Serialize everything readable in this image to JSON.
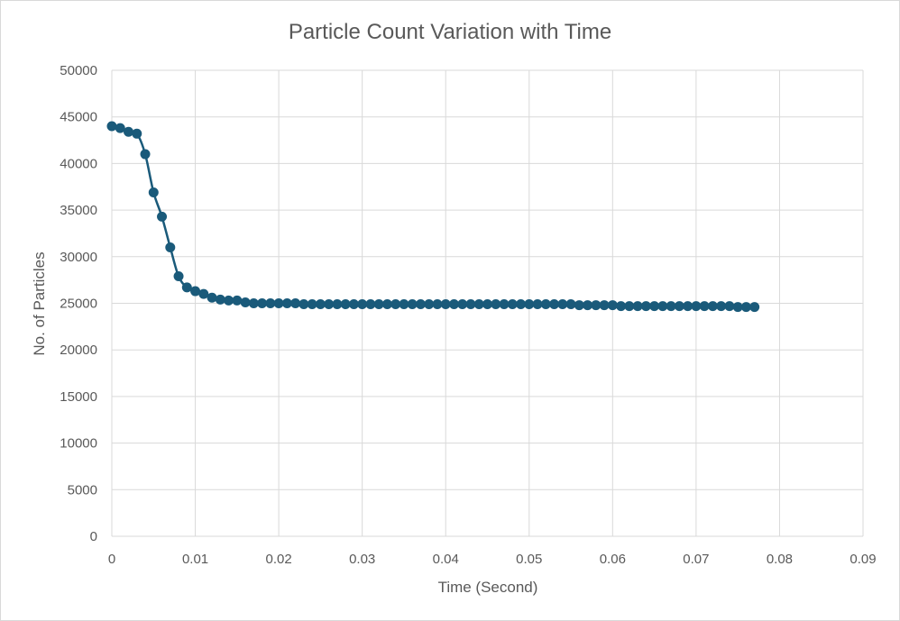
{
  "chart_data": {
    "type": "scatter",
    "title": "Particle Count Variation with Time",
    "xlabel": "Time (Second)",
    "ylabel": "No. of Particles",
    "xlim": [
      0,
      0.09
    ],
    "ylim": [
      0,
      50000
    ],
    "x_ticks": [
      "0",
      "0.01",
      "0.02",
      "0.03",
      "0.04",
      "0.05",
      "0.06",
      "0.07",
      "0.08",
      "0.09"
    ],
    "y_ticks": [
      "0",
      "5000",
      "10000",
      "15000",
      "20000",
      "25000",
      "30000",
      "35000",
      "40000",
      "45000",
      "50000"
    ],
    "grid": true,
    "legend": "none",
    "color": "#1a5a7a",
    "series": [
      {
        "x": [
          0,
          0.001,
          0.002,
          0.003,
          0.004,
          0.005,
          0.006,
          0.007,
          0.008,
          0.009,
          0.01,
          0.011,
          0.012,
          0.013,
          0.014,
          0.015,
          0.016,
          0.017,
          0.018,
          0.019,
          0.02,
          0.021,
          0.022,
          0.023,
          0.024,
          0.025,
          0.026,
          0.027,
          0.028,
          0.029,
          0.03,
          0.031,
          0.032,
          0.033,
          0.034,
          0.035,
          0.036,
          0.037,
          0.038,
          0.039,
          0.04,
          0.041,
          0.042,
          0.043,
          0.044,
          0.045,
          0.046,
          0.047,
          0.048,
          0.049,
          0.05,
          0.051,
          0.052,
          0.053,
          0.054,
          0.055,
          0.056,
          0.057,
          0.058,
          0.059,
          0.06,
          0.061,
          0.062,
          0.063,
          0.064,
          0.065,
          0.066,
          0.067,
          0.068,
          0.069,
          0.07,
          0.071,
          0.072,
          0.073,
          0.074,
          0.075,
          0.076,
          0.077
        ],
        "values": [
          44000,
          43800,
          43400,
          43200,
          41000,
          36900,
          34300,
          31000,
          27900,
          26700,
          26300,
          26000,
          25600,
          25400,
          25300,
          25300,
          25100,
          25000,
          25000,
          25000,
          25000,
          25000,
          25000,
          24900,
          24900,
          24900,
          24900,
          24900,
          24900,
          24900,
          24900,
          24900,
          24900,
          24900,
          24900,
          24900,
          24900,
          24900,
          24900,
          24900,
          24900,
          24900,
          24900,
          24900,
          24900,
          24900,
          24900,
          24900,
          24900,
          24900,
          24900,
          24900,
          24900,
          24900,
          24900,
          24900,
          24800,
          24800,
          24800,
          24800,
          24800,
          24700,
          24700,
          24700,
          24700,
          24700,
          24700,
          24700,
          24700,
          24700,
          24700,
          24700,
          24700,
          24700,
          24700,
          24600,
          24600,
          24600
        ]
      }
    ]
  }
}
